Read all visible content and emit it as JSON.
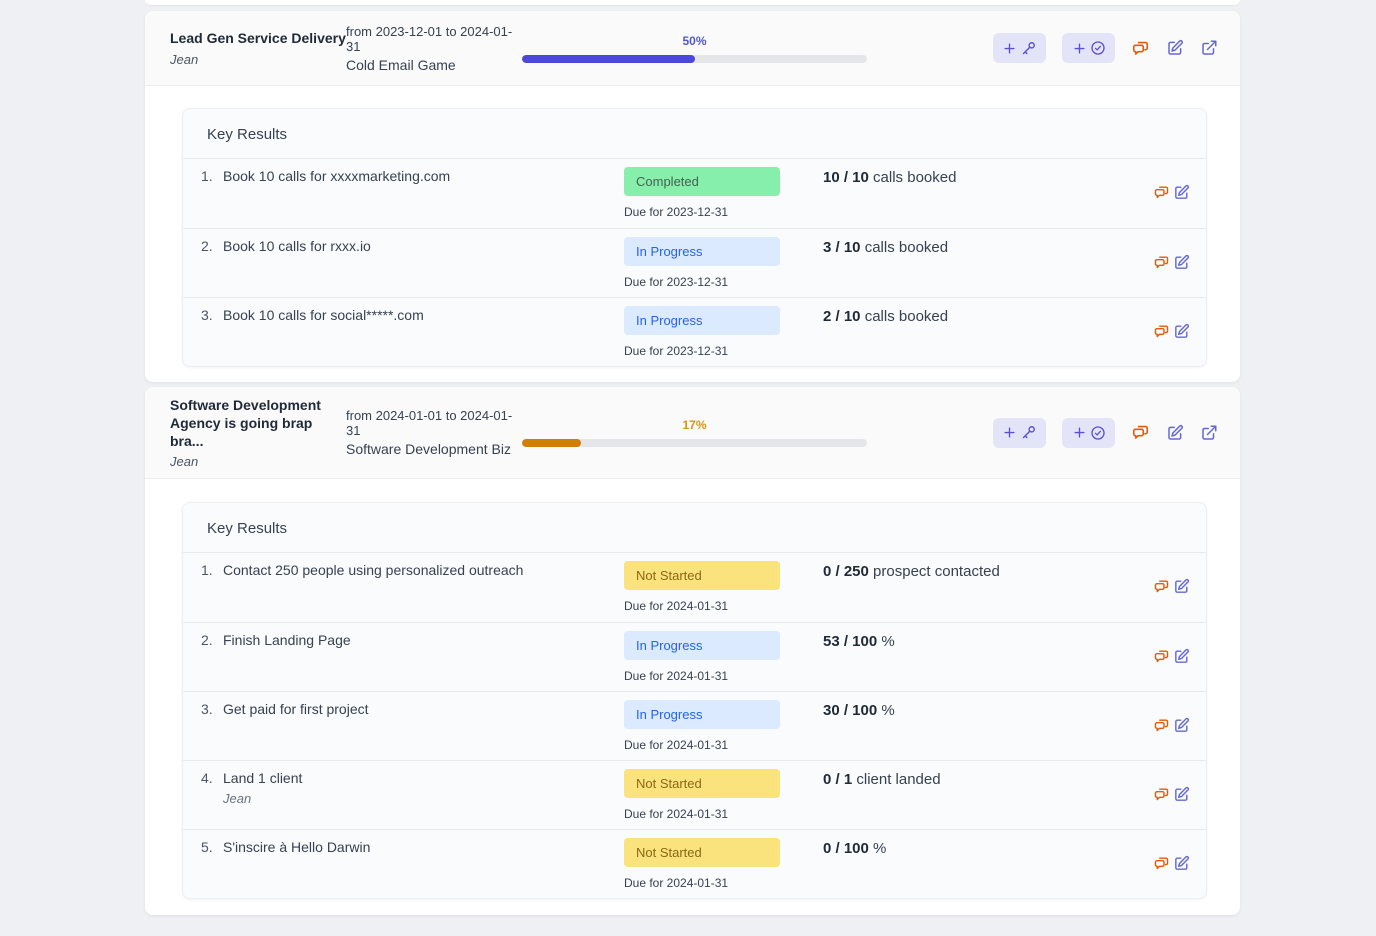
{
  "colors": {
    "page_bg": "#eef0f3",
    "card_header_bg": "#fafafa",
    "box_bg": "#fafbfc",
    "btn_bg": "#e3e4f8",
    "icon_purple": "#6467d3",
    "icon_orange": "#e4590c",
    "badge_completed_bg": "#86efac",
    "badge_completed_text": "#44624f",
    "badge_in_progress_bg": "#dbeafe",
    "badge_in_progress_text": "#2563eb",
    "badge_not_started_bg": "#fae27c",
    "badge_not_started_text": "#8b6914"
  },
  "icons": [
    "plus-icon",
    "key-icon",
    "check-circle-icon",
    "chat-icon",
    "edit-icon",
    "external-link-icon"
  ],
  "cards": [
    {
      "title": "Lead Gen Service Delivery",
      "owner": "Jean",
      "date_range": "from 2023-12-01 to 2024-01-31",
      "workspace": "Cold Email Game",
      "progress": {
        "percent": 50,
        "label": "50%",
        "bar_color": "#4c49d8",
        "label_color": "#5156d6"
      },
      "key_results_heading": "Key Results",
      "key_results": [
        {
          "num": "1.",
          "title": "Book 10 calls for xxxxmarketing.com",
          "status": "Completed",
          "due": "Due for 2023-12-31",
          "value": "10 / 10",
          "unit": "calls booked"
        },
        {
          "num": "2.",
          "title": "Book 10 calls for rxxx.io",
          "status": "In Progress",
          "due": "Due for 2023-12-31",
          "value": "3 / 10",
          "unit": "calls booked"
        },
        {
          "num": "3.",
          "title": "Book 10 calls for social*****.com",
          "status": "In Progress",
          "due": "Due for 2023-12-31",
          "value": "2 / 10",
          "unit": "calls booked"
        }
      ]
    },
    {
      "title": "Software Development Agency is going brap bra...",
      "owner": "Jean",
      "date_range": "from 2024-01-01 to 2024-01-31",
      "workspace": "Software Development Biz",
      "progress": {
        "percent": 17,
        "label": "17%",
        "bar_color": "#d17d08",
        "label_color": "#dc940c"
      },
      "key_results_heading": "Key Results",
      "key_results": [
        {
          "num": "1.",
          "title": "Contact 250 people using personalized outreach",
          "status": "Not Started",
          "due": "Due for 2024-01-31",
          "value": "0 / 250",
          "unit": "prospect contacted"
        },
        {
          "num": "2.",
          "title": "Finish Landing Page",
          "status": "In Progress",
          "due": "Due for 2024-01-31",
          "value": "53 / 100",
          "unit": "%"
        },
        {
          "num": "3.",
          "title": "Get paid for first project",
          "status": "In Progress",
          "due": "Due for 2024-01-31",
          "value": "30 / 100",
          "unit": "%"
        },
        {
          "num": "4.",
          "title": "Land 1 client",
          "owner": "Jean",
          "status": "Not Started",
          "due": "Due for 2024-01-31",
          "value": "0 / 1",
          "unit": "client landed"
        },
        {
          "num": "5.",
          "title": "S'inscire à Hello Darwin",
          "status": "Not Started",
          "due": "Due for 2024-01-31",
          "value": "0 / 100",
          "unit": "%"
        }
      ]
    }
  ]
}
